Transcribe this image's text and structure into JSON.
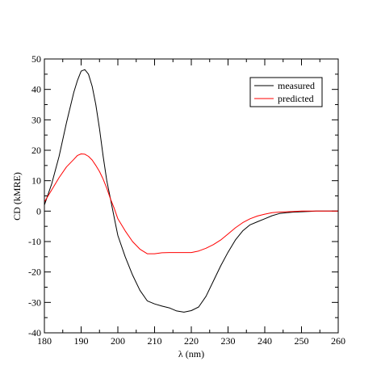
{
  "chart_data": {
    "type": "line",
    "xlabel": "λ (nm)",
    "ylabel": "CD (kMRE)",
    "xlim": [
      180,
      260
    ],
    "ylim": [
      -40,
      50
    ],
    "xticks": [
      180,
      190,
      200,
      210,
      220,
      230,
      240,
      250,
      260
    ],
    "yticks": [
      -40,
      -30,
      -20,
      -10,
      0,
      10,
      20,
      30,
      40,
      50
    ],
    "grid": false,
    "legend_position": "top-right",
    "series": [
      {
        "name": "measured",
        "color": "#000000",
        "x": [
          180,
          182,
          184,
          186,
          188,
          189,
          190,
          191,
          192,
          193,
          194,
          195,
          196,
          197,
          198,
          199,
          200,
          202,
          204,
          206,
          208,
          210,
          212,
          214,
          216,
          218,
          220,
          222,
          224,
          226,
          228,
          230,
          232,
          234,
          236,
          238,
          240,
          242,
          244,
          246,
          248,
          250,
          252,
          254,
          256,
          258,
          260
        ],
        "values": [
          2,
          9,
          18,
          29,
          39,
          43,
          46,
          46.5,
          45,
          41,
          35,
          27,
          18,
          10,
          4,
          -2,
          -8,
          -15,
          -21,
          -26,
          -29.5,
          -30.5,
          -31.2,
          -31.8,
          -32.8,
          -33.2,
          -32.7,
          -31.5,
          -28,
          -23,
          -18,
          -13.5,
          -9.5,
          -6.5,
          -4.5,
          -3.5,
          -2.5,
          -1.5,
          -0.8,
          -0.5,
          -0.3,
          -0.2,
          -0.1,
          0,
          0,
          0,
          0
        ]
      },
      {
        "name": "predicted",
        "color": "#ff0000",
        "x": [
          180,
          182,
          184,
          186,
          188,
          189,
          190,
          191,
          192,
          193,
          194,
          195,
          196,
          197,
          198,
          199,
          200,
          202,
          204,
          206,
          208,
          210,
          212,
          214,
          216,
          218,
          220,
          222,
          224,
          226,
          228,
          230,
          232,
          234,
          236,
          238,
          240,
          242,
          244,
          246,
          248,
          250,
          252,
          254,
          256,
          258,
          260
        ],
        "values": [
          3,
          7,
          11,
          14.5,
          17,
          18.3,
          18.8,
          18.7,
          18,
          16.8,
          15,
          13,
          10.5,
          7.5,
          4,
          1,
          -2.5,
          -6.5,
          -10,
          -12.5,
          -14,
          -14,
          -13.7,
          -13.6,
          -13.6,
          -13.6,
          -13.6,
          -13.1,
          -12.2,
          -11,
          -9.5,
          -7.5,
          -5.5,
          -3.8,
          -2.5,
          -1.6,
          -1,
          -0.5,
          -0.3,
          -0.2,
          -0.1,
          0,
          0,
          0,
          0,
          0,
          0
        ]
      }
    ]
  }
}
